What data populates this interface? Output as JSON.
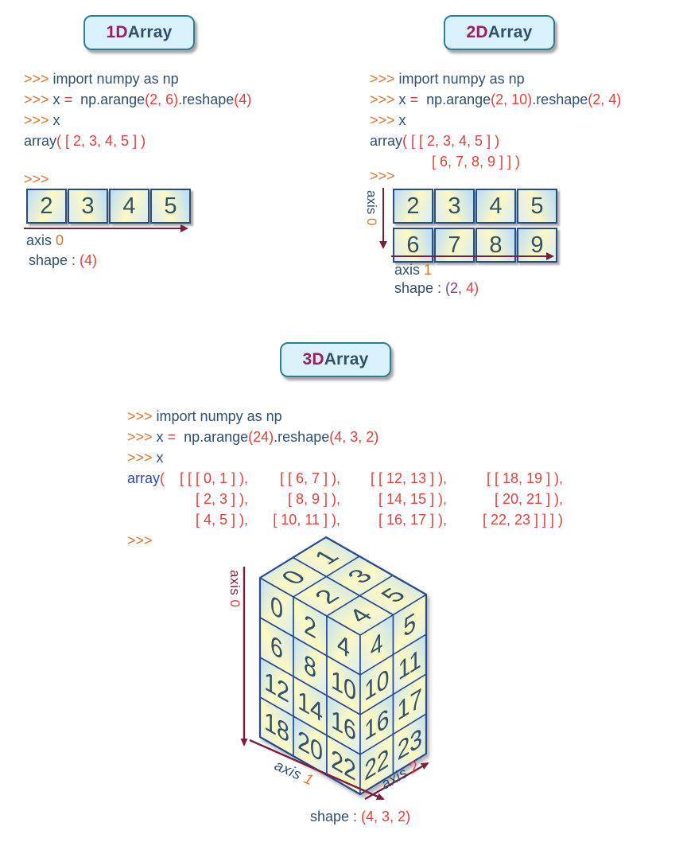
{
  "palette": {
    "navy": "#31506b",
    "orange": "#d9742f",
    "red": "#e2403d",
    "maroon": "#7b1f3f",
    "purple": "#7e3f9d",
    "blue": "#2b45c8",
    "magenta": "#a01d5d",
    "badge_bg": "#d9f1fa",
    "badge_border": "#2f7e95",
    "box_border": "#2b4d7e",
    "cell_blue": "#bfdff7",
    "cell_yellow": "#fbf8c3",
    "cube_stroke": "#2a4a8f"
  },
  "d1": {
    "title_prefix": "1D",
    "title_rest": " Array",
    "code": [
      {
        "pad": 0,
        "segs": [
          {
            "t": ">>> ",
            "c": "orange"
          },
          {
            "t": "import numpy as np",
            "c": "navy"
          }
        ]
      },
      {
        "pad": 0,
        "segs": [
          {
            "t": ">>> ",
            "c": "orange"
          },
          {
            "t": "x ",
            "c": "navy"
          },
          {
            "t": "=",
            "c": "red"
          },
          {
            "t": "  np.arange",
            "c": "navy"
          },
          {
            "t": "(2, 6)",
            "c": "red"
          },
          {
            "t": ".reshape",
            "c": "navy"
          },
          {
            "t": "(4)",
            "c": "red"
          }
        ]
      },
      {
        "pad": 0,
        "segs": [
          {
            "t": ">>> ",
            "c": "orange"
          },
          {
            "t": "x",
            "c": "navy"
          }
        ]
      },
      {
        "pad": 0,
        "segs": [
          {
            "t": "array",
            "c": "navy"
          },
          {
            "t": "( [ 2, 3, 4, 5 ] )",
            "c": "red"
          }
        ]
      }
    ],
    "prompt": [
      {
        "t": ">>>",
        "c": "orange"
      }
    ],
    "rows": [
      [
        "2",
        "3",
        "4",
        "5"
      ]
    ],
    "axis0": [
      {
        "t": "axis ",
        "c": "navy"
      },
      {
        "t": "0",
        "c": "orange"
      }
    ],
    "shape": [
      {
        "t": "shape : ",
        "c": "navy"
      },
      {
        "t": "(4)",
        "c": "red"
      }
    ]
  },
  "d2": {
    "title_prefix": "2D",
    "title_rest": " Array",
    "code": [
      {
        "pad": 0,
        "segs": [
          {
            "t": ">>> ",
            "c": "orange"
          },
          {
            "t": "import numpy as np",
            "c": "navy"
          }
        ]
      },
      {
        "pad": 0,
        "segs": [
          {
            "t": ">>> ",
            "c": "orange"
          },
          {
            "t": "x ",
            "c": "navy"
          },
          {
            "t": "=",
            "c": "red"
          },
          {
            "t": "  np.arange",
            "c": "navy"
          },
          {
            "t": "(2, 10)",
            "c": "red"
          },
          {
            "t": ".reshape",
            "c": "navy"
          },
          {
            "t": "(2, 4)",
            "c": "red"
          }
        ]
      },
      {
        "pad": 0,
        "segs": [
          {
            "t": ">>> ",
            "c": "orange"
          },
          {
            "t": "x",
            "c": "navy"
          }
        ]
      },
      {
        "pad": 0,
        "segs": [
          {
            "t": "array",
            "c": "navy"
          },
          {
            "t": "( [ [ 2, 3, 4, 5 ] )",
            "c": "red"
          }
        ]
      },
      {
        "pad": 78,
        "segs": [
          {
            "t": "[ 6, 7, 8, 9 ] ] )",
            "c": "red"
          }
        ]
      }
    ],
    "prompt": [
      {
        "t": ">>>",
        "c": "orange"
      }
    ],
    "rows": [
      [
        "2",
        "3",
        "4",
        "5"
      ],
      [
        "6",
        "7",
        "8",
        "9"
      ]
    ],
    "axis0": [
      {
        "t": "axis ",
        "c": "navy"
      },
      {
        "t": "0",
        "c": "orange"
      }
    ],
    "axis1": [
      {
        "t": "axis ",
        "c": "navy"
      },
      {
        "t": "1",
        "c": "orange"
      }
    ],
    "shape": [
      {
        "t": "shape : ",
        "c": "navy"
      },
      {
        "t": "(2,",
        "c": "purple"
      },
      {
        "t": " 4)",
        "c": "red"
      }
    ]
  },
  "d3": {
    "title_prefix": "3D",
    "title_rest": " Array",
    "code": [
      {
        "pad": 0,
        "segs": [
          {
            "t": ">>> ",
            "c": "orange"
          },
          {
            "t": "import numpy as np",
            "c": "navy"
          }
        ]
      },
      {
        "pad": 0,
        "segs": [
          {
            "t": ">>> ",
            "c": "orange"
          },
          {
            "t": "x ",
            "c": "navy"
          },
          {
            "t": "=",
            "c": "red"
          },
          {
            "t": "  np.arange",
            "c": "navy"
          },
          {
            "t": "(24)",
            "c": "red"
          },
          {
            "t": ".reshape",
            "c": "navy"
          },
          {
            "t": "(4, 3, 2)",
            "c": "red"
          }
        ]
      },
      {
        "pad": 0,
        "segs": [
          {
            "t": ">>> ",
            "c": "orange"
          },
          {
            "t": "x",
            "c": "navy"
          }
        ]
      }
    ],
    "array_prefix": [
      {
        "t": "array",
        "c": "blue"
      },
      {
        "t": "( ",
        "c": "red"
      }
    ],
    "array_rows": [
      [
        "[ [ [ 0, 1 ] ),",
        "[ [ 6, 7 ] ),",
        "[ [ 12, 13 ] ),",
        "[ [ 18, 19 ] ),"
      ],
      [
        "[ 2, 3 ] ),",
        "[ 8, 9 ] ),",
        "[ 14, 15 ] ),",
        "[ 20, 21 ] ),"
      ],
      [
        "[ 4, 5 ] ),",
        "[ 10, 11 ] ),",
        "[ 16, 17 ] ),",
        "[ 22, 23 ] ] ] )"
      ]
    ],
    "prompt": [
      {
        "t": ">>>",
        "c": "orange"
      }
    ],
    "cube": {
      "top": [
        [
          "0",
          "1"
        ],
        [
          "2",
          "3"
        ],
        [
          "4",
          "5"
        ]
      ],
      "front": [
        [
          "0",
          "2",
          "4"
        ],
        [
          "6",
          "8",
          "10"
        ],
        [
          "12",
          "14",
          "16"
        ],
        [
          "18",
          "20",
          "22"
        ]
      ],
      "right": [
        [
          "4",
          "5"
        ],
        [
          "10",
          "11"
        ],
        [
          "16",
          "17"
        ],
        [
          "22",
          "23"
        ]
      ],
      "axis0": [
        {
          "t": "axis ",
          "c": "maroon"
        },
        {
          "t": "0",
          "c": "red"
        }
      ],
      "axis1": [
        {
          "t": "axis ",
          "c": "navy"
        },
        {
          "t": "1",
          "c": "orange"
        }
      ],
      "axis2": [
        {
          "t": "axis ",
          "c": "navy"
        },
        {
          "t": "2",
          "c": "red"
        }
      ]
    },
    "shape": [
      {
        "t": "shape : ",
        "c": "navy"
      },
      {
        "t": "(4, 3, 2)",
        "c": "red"
      }
    ]
  }
}
